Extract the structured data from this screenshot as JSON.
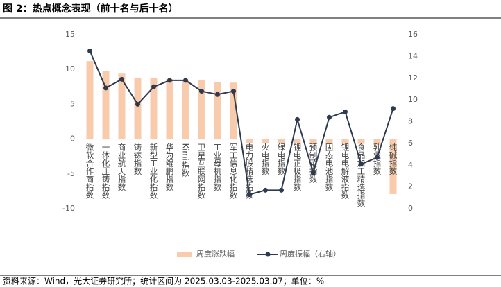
{
  "chart_data": {
    "type": "bar",
    "title": "图 2：热点概念表现（前十名与后十名）",
    "source": "资料来源：Wind，光大证券研究所；统计区间为 2025.03.03-2025.03.07；单位：%",
    "categories": [
      "微软合作商指数",
      "一体化压铸指数",
      "商业航天指数",
      "铸镓指数",
      "新型工业化指数",
      "华为鲲鹏指数",
      "Kimi指数",
      "卫星互联网指数",
      "工业母机指数",
      "军工信息化指数",
      "电力股精选指数",
      "火电指数",
      "绿电指数",
      "锂电正极指数",
      "预制菜指数",
      "固态电池指数",
      "锂电电解液指数",
      "食品加工精选指数",
      "乳业指数",
      "纯碱指数"
    ],
    "series": [
      {
        "name": "周度涨跌幅",
        "type": "bar",
        "color": "#f8cbad",
        "values": [
          11.2,
          9.8,
          9.4,
          8.8,
          8.8,
          8.6,
          8.5,
          8.5,
          8.2,
          8.1,
          -0.6,
          -0.6,
          -0.6,
          -0.6,
          -0.7,
          -0.7,
          -0.7,
          -0.7,
          -0.8,
          -7.9
        ]
      },
      {
        "name": "周度振幅（右轴）",
        "type": "line",
        "axis": "y2",
        "color": "#2e3a4f",
        "values": [
          14.5,
          11.1,
          11.9,
          9.6,
          11.2,
          11.8,
          11.8,
          10.8,
          10.5,
          10.8,
          1.3,
          1.7,
          1.7,
          8.2,
          3.3,
          8.4,
          8.9,
          4.1,
          4.7,
          9.2
        ]
      }
    ],
    "ylim": [
      -10,
      15
    ],
    "yticks": [
      -10,
      -5,
      0,
      5,
      10,
      15
    ],
    "y2lim": [
      0,
      16
    ],
    "y2ticks": [
      0,
      2,
      4,
      6,
      8,
      10,
      12,
      14,
      16
    ]
  }
}
